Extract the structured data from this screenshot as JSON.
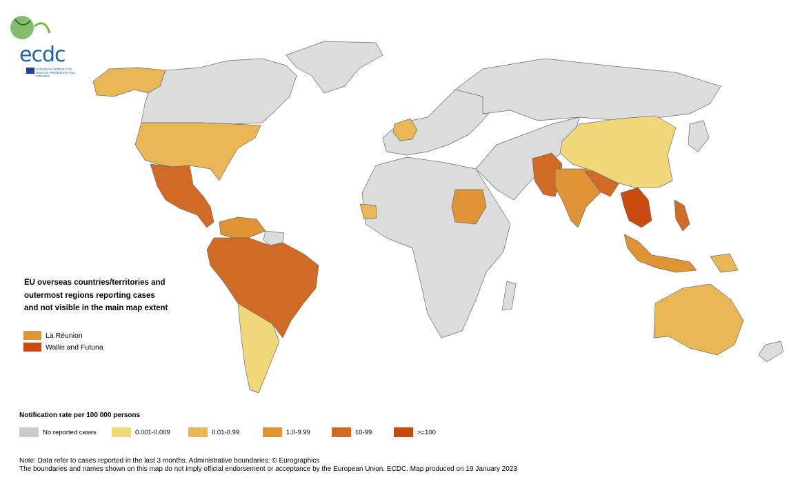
{
  "logo": {
    "text": "ecdc",
    "subtitle": "European Centre for Disease Prevention and Control"
  },
  "overseas": {
    "title": "EU overseas countries/territories and outermost regions reporting cases and not visible in the main map extent",
    "items": [
      {
        "label": "La Réunion",
        "color": "#de9334"
      },
      {
        "label": "Wallis and Futuna",
        "color": "#c84a10"
      }
    ]
  },
  "legend": {
    "title": "Notification rate per 100 000 persons",
    "items": [
      {
        "label": "No reported cases",
        "color": "#c9c9c9"
      },
      {
        "label": "0.001-0.009",
        "color": "#f0d77a"
      },
      {
        "label": "0.01-0.99",
        "color": "#e9b655"
      },
      {
        "label": "1.0-9.99",
        "color": "#de9334"
      },
      {
        "label": "10-99",
        "color": "#d06a24"
      },
      {
        "label": ">=100",
        "color": "#c84a10"
      }
    ]
  },
  "note": {
    "line1": "Note: Data refer to cases reported in the last 3 months. Administrative boundaries: © Eurographics",
    "line2": "The boundaries and names shown on this map do not imply official endorsement or acceptance by the European Union. ECDC. Map produced on 19 January 2023"
  }
}
